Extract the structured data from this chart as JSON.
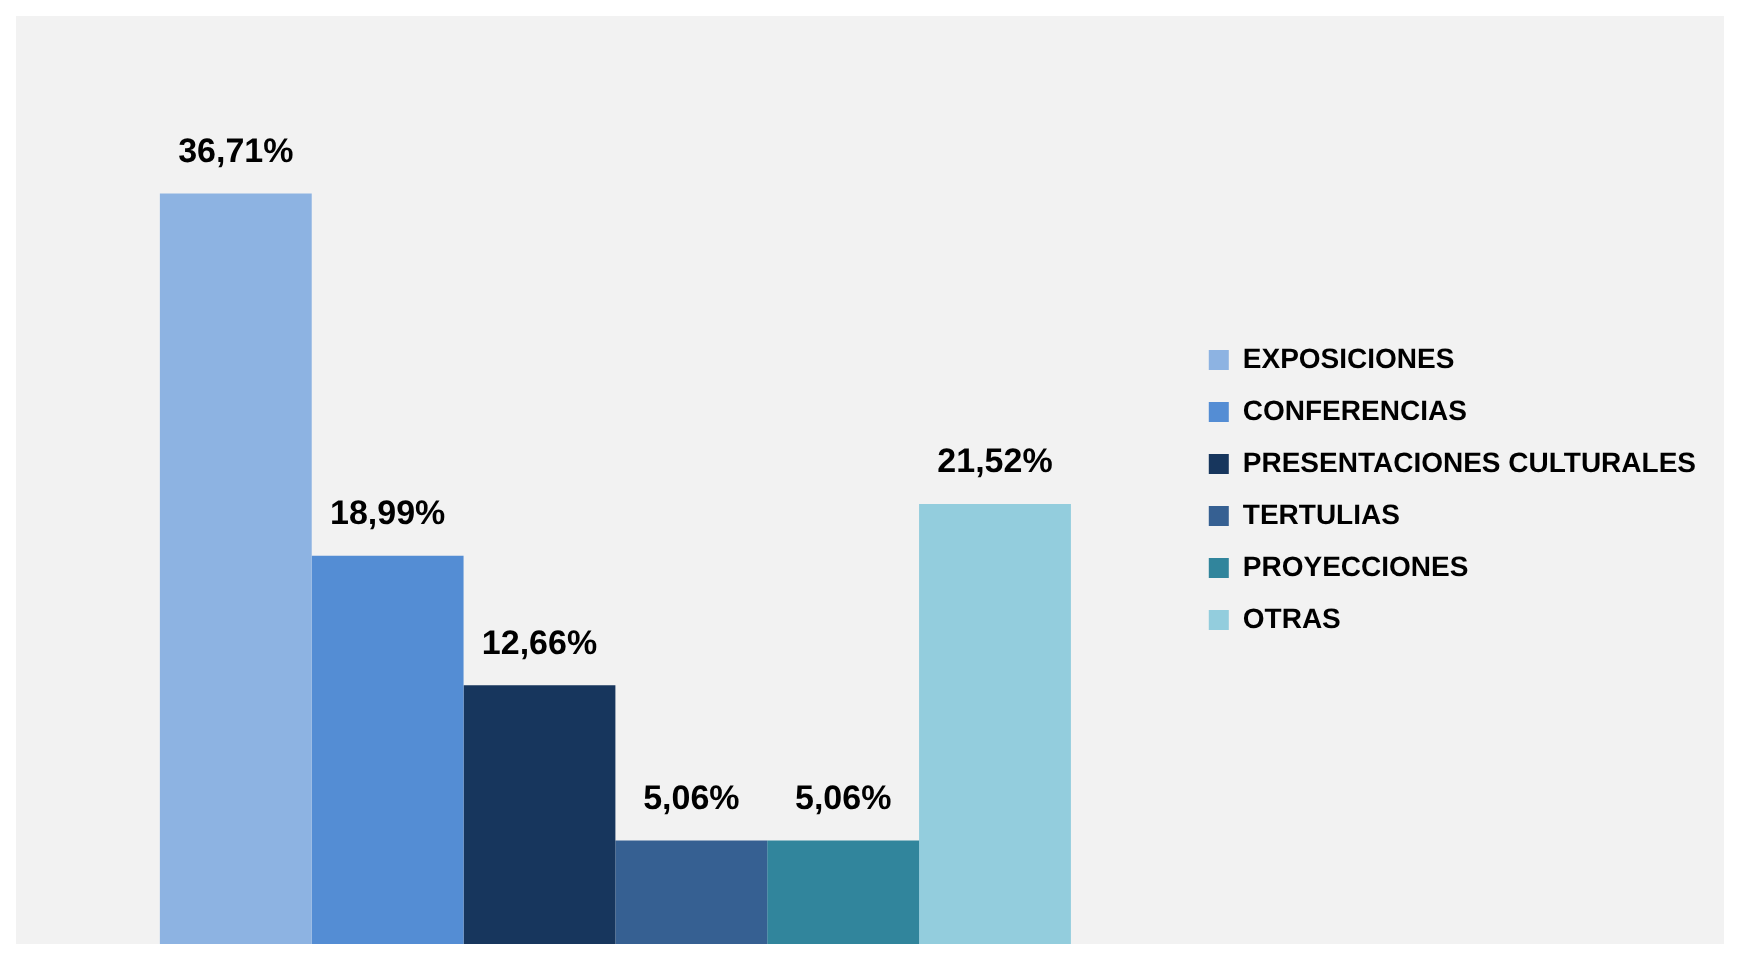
{
  "chart_data": {
    "type": "bar",
    "categories": [
      null
    ],
    "legend": "right",
    "series": [
      {
        "name": "EXPOSICIONES",
        "color": "#8db3e2",
        "values": [
          36.71
        ],
        "value_labels": [
          "36,71%"
        ]
      },
      {
        "name": "CONFERENCIAS",
        "color": "#548dd4",
        "values": [
          18.99
        ],
        "value_labels": [
          "18,99%"
        ]
      },
      {
        "name": "PRESENTACIONES CULTURALES",
        "color": "#17365d",
        "values": [
          12.66
        ],
        "value_labels": [
          "12,66%"
        ]
      },
      {
        "name": "TERTULIAS",
        "color": "#366092",
        "values": [
          5.06
        ],
        "value_labels": [
          "5,06%"
        ]
      },
      {
        "name": "PROYECCIONES",
        "color": "#31859c",
        "values": [
          5.06
        ],
        "value_labels": [
          "5,06%"
        ]
      },
      {
        "name": "OTRAS",
        "color": "#93cddd",
        "values": [
          21.52
        ],
        "value_labels": [
          "21,52%"
        ]
      }
    ]
  }
}
